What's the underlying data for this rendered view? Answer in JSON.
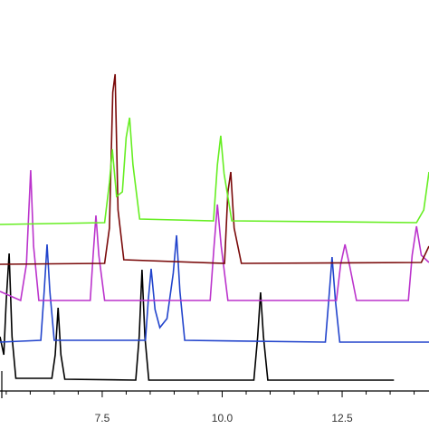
{
  "chart_data": {
    "type": "line",
    "xlim": [
      5.37,
      14.31
    ],
    "ylim": [
      0,
      432
    ],
    "xticks": [
      7.5,
      {
        "value": 10,
        "label": "10.0"
      },
      12.5
    ],
    "xminorticks": [
      5.5,
      6,
      6.5,
      7,
      8,
      8.5,
      9,
      9.5,
      10.5,
      11,
      11.5,
      12,
      13,
      13.5,
      14
    ],
    "series": [
      {
        "color": "#000000",
        "x": [
          5.37,
          5.45,
          5.5,
          5.56,
          5.62,
          5.7,
          6.45,
          6.52,
          6.58,
          6.64,
          6.72,
          8.2,
          8.27,
          8.33,
          8.39,
          8.47,
          10.66,
          10.74,
          10.8,
          10.86,
          10.95,
          13.58
        ],
        "values": [
          60,
          40,
          100,
          152,
          60,
          14,
          14,
          40,
          92,
          40,
          13,
          12,
          60,
          134,
          60,
          12,
          12,
          60,
          109,
          60,
          12,
          12
        ]
      },
      {
        "color": "#2244cc",
        "x": [
          5.37,
          6.22,
          6.29,
          6.35,
          6.41,
          6.5,
          8.4,
          8.46,
          8.52,
          8.6,
          8.7,
          8.85,
          8.98,
          9.05,
          9.12,
          9.22,
          12.15,
          12.22,
          12.29,
          12.36,
          12.45,
          14.31
        ],
        "values": [
          54,
          56,
          110,
          162,
          110,
          56,
          56,
          100,
          135,
          90,
          70,
          80,
          130,
          172,
          110,
          56,
          54,
          100,
          148,
          100,
          54,
          54
        ]
      },
      {
        "color": "#bb33cc",
        "x": [
          5.37,
          5.8,
          5.92,
          6.01,
          6.07,
          6.18,
          7.25,
          7.31,
          7.37,
          7.43,
          7.55,
          9.75,
          9.83,
          9.9,
          9.98,
          10.12,
          12.38,
          12.47,
          12.56,
          12.65,
          12.8,
          13.88,
          13.96,
          14.05,
          14.15,
          14.31
        ],
        "values": [
          110,
          100,
          140,
          244,
          160,
          100,
          100,
          150,
          194,
          150,
          100,
          100,
          160,
          206,
          160,
          100,
          100,
          140,
          162,
          140,
          100,
          100,
          150,
          182,
          150,
          142
        ]
      },
      {
        "color": "#7a0a0a",
        "x": [
          5.37,
          7.55,
          7.65,
          7.72,
          7.77,
          7.83,
          7.95,
          10.05,
          10.12,
          10.18,
          10.25,
          10.4,
          14.15,
          14.31
        ],
        "values": [
          140,
          141,
          180,
          330,
          350,
          200,
          145,
          141,
          220,
          242,
          180,
          141,
          142,
          160
        ]
      },
      {
        "color": "#66ee22",
        "x": [
          5.37,
          7.55,
          7.65,
          7.71,
          7.8,
          7.92,
          8.0,
          8.07,
          8.14,
          8.28,
          9.82,
          9.9,
          9.97,
          10.04,
          10.2,
          14.05,
          14.2,
          14.31
        ],
        "values": [
          184,
          186,
          230,
          267,
          215,
          220,
          280,
          302,
          250,
          190,
          188,
          250,
          282,
          240,
          188,
          186,
          200,
          242
        ]
      }
    ]
  }
}
